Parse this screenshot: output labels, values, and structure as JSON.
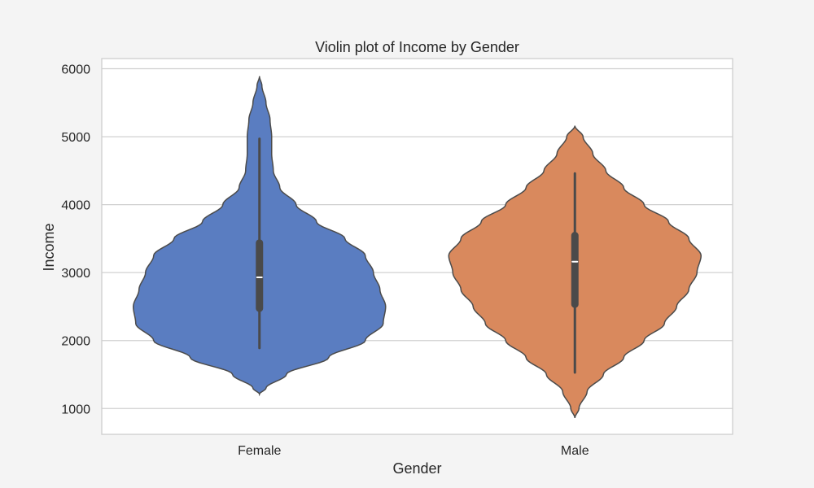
{
  "chart_data": {
    "type": "violin",
    "title": "Violin plot of Income by Gender",
    "xlabel": "Gender",
    "ylabel": "Income",
    "ylim": [
      620,
      6150
    ],
    "yticks": [
      1000,
      2000,
      3000,
      4000,
      5000,
      6000
    ],
    "grid": "horizontal",
    "categories": [
      "Female",
      "Male"
    ],
    "colors": {
      "Female": "#5a7dc1",
      "Male": "#d9895d",
      "outline": "#4b4b4b",
      "box": "#4a4a4a",
      "median": "#ffffff",
      "grid": "#d0d0d0",
      "frame": "#cccccc",
      "plot_bg": "#ffffff",
      "figure_bg": "#f4f4f4"
    },
    "violins": [
      {
        "category": "Female",
        "color": "#5a7dc1",
        "range": [
          1210,
          5890
        ],
        "quartiles": [
          2420,
          2930,
          3490
        ],
        "whiskers": [
          1890,
          4970
        ],
        "half_width_by_value": [
          [
            1210,
            0
          ],
          [
            1300,
            8
          ],
          [
            1500,
            33
          ],
          [
            1750,
            85
          ],
          [
            2000,
            130
          ],
          [
            2250,
            152
          ],
          [
            2500,
            155
          ],
          [
            2750,
            148
          ],
          [
            3000,
            140
          ],
          [
            3250,
            130
          ],
          [
            3500,
            105
          ],
          [
            3750,
            70
          ],
          [
            4000,
            45
          ],
          [
            4250,
            25
          ],
          [
            4500,
            17
          ],
          [
            4750,
            15
          ],
          [
            5000,
            15
          ],
          [
            5250,
            13
          ],
          [
            5500,
            8
          ],
          [
            5750,
            3
          ],
          [
            5890,
            0
          ]
        ]
      },
      {
        "category": "Male",
        "color": "#d9895d",
        "range": [
          860,
          5160
        ],
        "quartiles": [
          2480,
          3160,
          3600
        ],
        "whiskers": [
          1530,
          4460
        ],
        "half_width_by_value": [
          [
            860,
            0
          ],
          [
            1000,
            5
          ],
          [
            1250,
            15
          ],
          [
            1500,
            35
          ],
          [
            1750,
            60
          ],
          [
            2000,
            85
          ],
          [
            2250,
            110
          ],
          [
            2500,
            125
          ],
          [
            2750,
            140
          ],
          [
            3000,
            150
          ],
          [
            3250,
            155
          ],
          [
            3500,
            140
          ],
          [
            3750,
            115
          ],
          [
            4000,
            85
          ],
          [
            4250,
            60
          ],
          [
            4500,
            38
          ],
          [
            4750,
            22
          ],
          [
            5000,
            10
          ],
          [
            5160,
            0
          ]
        ]
      }
    ]
  }
}
